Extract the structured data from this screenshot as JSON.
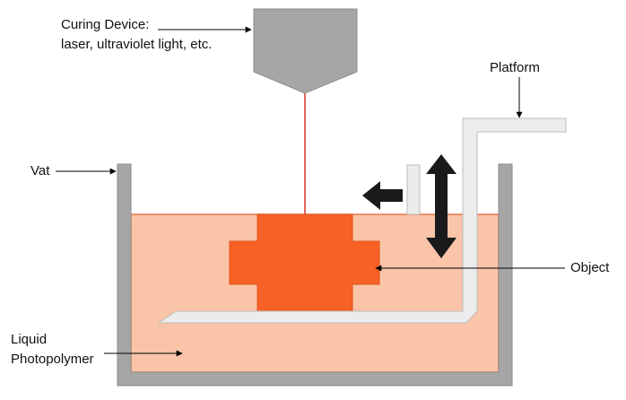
{
  "labels": {
    "curing_line1": "Curing Device:",
    "curing_line2": "laser, ultraviolet light, etc.",
    "platform": "Platform",
    "vat": "Vat",
    "object": "Object",
    "liquid_line1": "Liquid",
    "liquid_line2": "Photopolymer"
  },
  "colors": {
    "vat_wall": "#a6a6a6",
    "vat_wall_stroke": "#8c8c8c",
    "liquid": "#f9c4a8",
    "liquid_border": "#e8774a",
    "object": "#f76125",
    "object_stroke": "#e0521a",
    "laser_beam": "#e0322a",
    "curing_device": "#a6a6a6",
    "platform": "#ececec",
    "platform_stroke": "#bdbdbd",
    "motion_arrow": "#1a1a1a",
    "leader_line": "#000000"
  },
  "icons": {
    "vertical_motion": "double-arrow-vertical-icon",
    "horizontal_motion": "arrow-left-icon"
  }
}
